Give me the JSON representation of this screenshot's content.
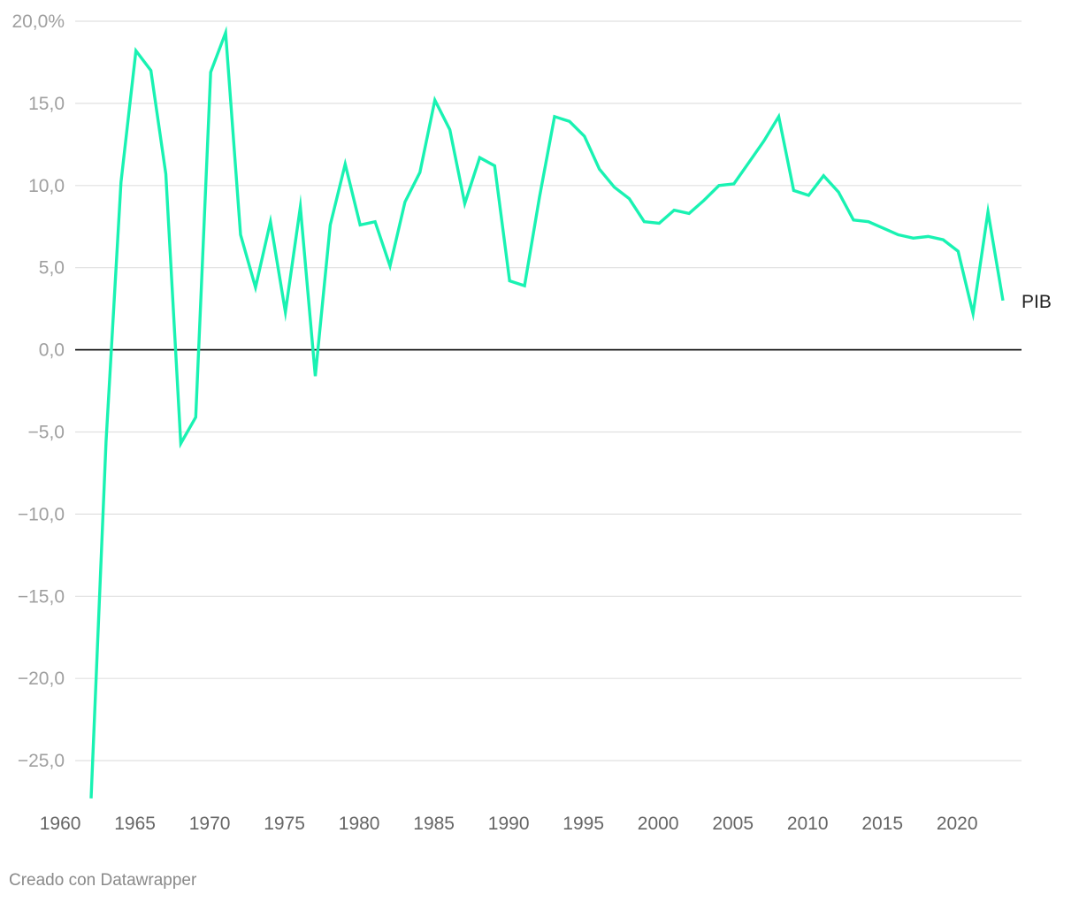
{
  "footer": {
    "credit": "Creado con Datawrapper"
  },
  "colors": {
    "line": "#19f2b2",
    "grid": "#e0e0e0",
    "zero_line": "#000000"
  },
  "chart_data": {
    "type": "line",
    "title": "",
    "xlabel": "",
    "ylabel": "",
    "xlim": [
      1960,
      2022
    ],
    "ylim": [
      -27.5,
      20
    ],
    "x_ticks": [
      1960,
      1965,
      1970,
      1975,
      1980,
      1985,
      1990,
      1995,
      2000,
      2005,
      2010,
      2015,
      2020
    ],
    "y_ticks": [
      {
        "value": 20,
        "label": "20,0%"
      },
      {
        "value": 15,
        "label": "15,0"
      },
      {
        "value": 10,
        "label": "10,0"
      },
      {
        "value": 5,
        "label": "5,0"
      },
      {
        "value": 0,
        "label": "0,0"
      },
      {
        "value": -5,
        "label": "−5,0"
      },
      {
        "value": -10,
        "label": "−10,0"
      },
      {
        "value": -15,
        "label": "−15,0"
      },
      {
        "value": -20,
        "label": "−20,0"
      },
      {
        "value": -25,
        "label": "−25,0"
      }
    ],
    "grid": true,
    "series": [
      {
        "name": "PIB",
        "x": [
          1961,
          1962,
          1963,
          1964,
          1965,
          1966,
          1967,
          1968,
          1969,
          1970,
          1971,
          1972,
          1973,
          1974,
          1975,
          1976,
          1977,
          1978,
          1979,
          1980,
          1981,
          1982,
          1983,
          1984,
          1985,
          1986,
          1987,
          1988,
          1989,
          1990,
          1991,
          1992,
          1993,
          1994,
          1995,
          1996,
          1997,
          1998,
          1999,
          2000,
          2001,
          2002,
          2003,
          2004,
          2005,
          2006,
          2007,
          2008,
          2009,
          2010,
          2011,
          2012,
          2013,
          2014,
          2015,
          2016,
          2017,
          2018,
          2019,
          2020,
          2021,
          2022
        ],
        "values": [
          -27.3,
          -5.6,
          10.2,
          18.2,
          17.0,
          10.7,
          -5.7,
          -4.1,
          16.9,
          19.3,
          7.0,
          3.8,
          7.8,
          2.3,
          8.7,
          -1.6,
          7.6,
          11.3,
          7.6,
          7.8,
          5.1,
          9.0,
          10.8,
          15.2,
          13.4,
          8.9,
          11.7,
          11.2,
          4.2,
          3.9,
          9.3,
          14.2,
          13.9,
          13.0,
          11.0,
          9.9,
          9.2,
          7.8,
          7.7,
          8.5,
          8.3,
          9.1,
          10.0,
          10.1,
          11.4,
          12.7,
          14.2,
          9.7,
          9.4,
          10.6,
          9.6,
          7.9,
          7.8,
          7.4,
          7.0,
          6.8,
          6.9,
          6.7,
          6.0,
          2.2,
          8.4,
          3.0
        ]
      }
    ]
  }
}
